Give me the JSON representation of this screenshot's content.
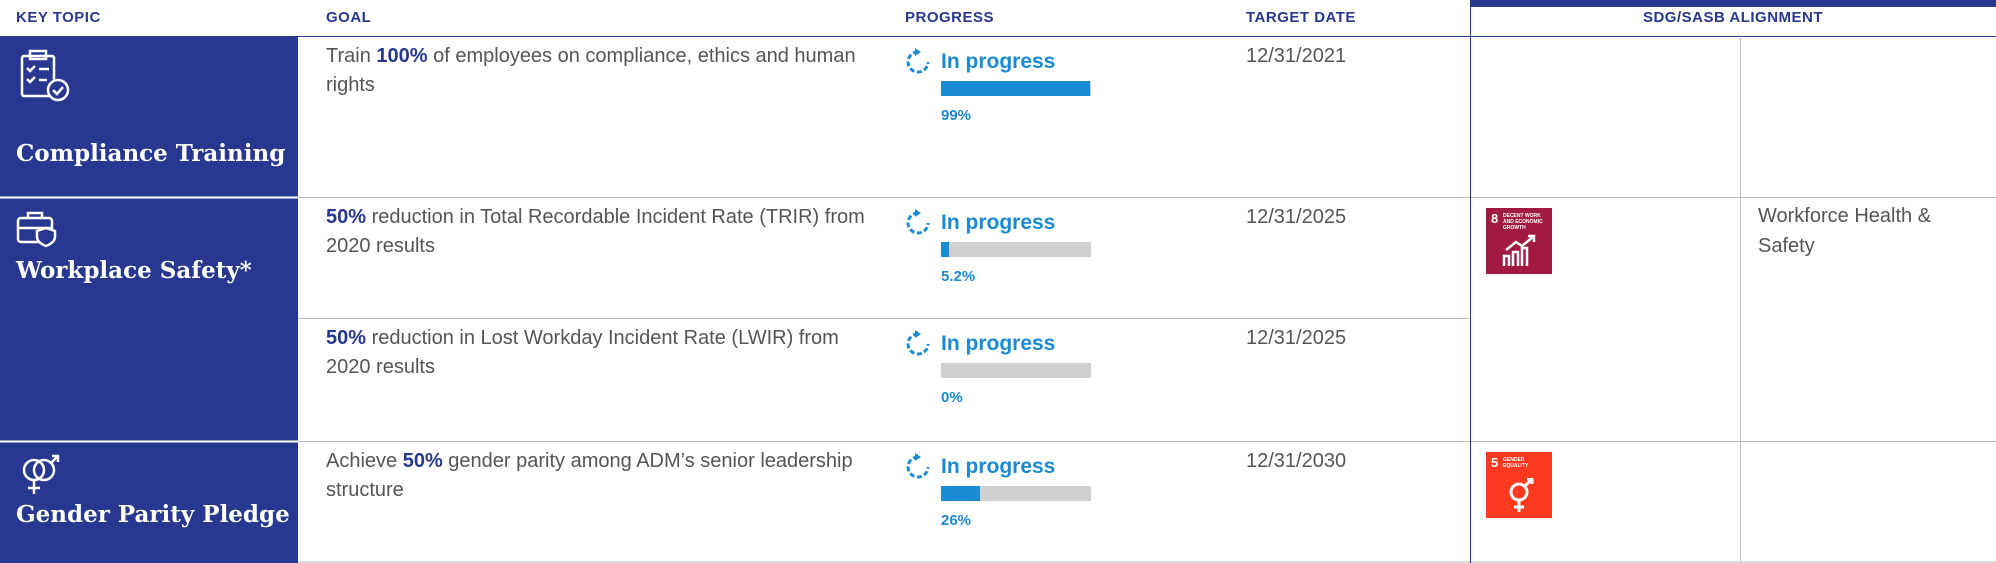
{
  "header": {
    "columns": [
      "KEY TOPIC",
      "GOAL",
      "PROGRESS",
      "TARGET DATE",
      "SDG/SASB ALIGNMENT"
    ]
  },
  "rows": [
    {
      "topic": "Compliance Training",
      "goals": [
        {
          "pre": "Train ",
          "em": "100%",
          "post": " of employees on compliance, ethics and human rights",
          "status": "In progress",
          "value": 99,
          "value_label": "99%",
          "date": "12/31/2021"
        }
      ]
    },
    {
      "topic": "Workplace Safety*",
      "goals": [
        {
          "em": "50%",
          "post": " reduction in Total Recordable Incident Rate (TRIR) from 2020 results",
          "status": "In progress",
          "value": 5.2,
          "value_label": "5.2%",
          "date": "12/31/2025"
        },
        {
          "em": "50%",
          "post": " reduction in Lost Workday Incident Rate (LWIR) from 2020 results",
          "status": "In progress",
          "value": 0,
          "value_label": "0%",
          "date": "12/31/2025"
        }
      ],
      "sdg": {
        "number": "8",
        "label": "DECENT WORK AND ECONOMIC GROWTH",
        "color": "#a21942"
      },
      "sasb": "Workforce Health & Safety"
    },
    {
      "topic": "Gender Parity Pledge",
      "goals": [
        {
          "pre": "Achieve ",
          "em": "50%",
          "post": " gender parity among ADM’s senior leadership structure",
          "status": "In progress",
          "value": 26,
          "value_label": "26%",
          "date": "12/31/2030"
        }
      ],
      "sdg": {
        "number": "5",
        "label": "GENDER EQUALITY",
        "color": "#ff3a21"
      }
    }
  ]
}
